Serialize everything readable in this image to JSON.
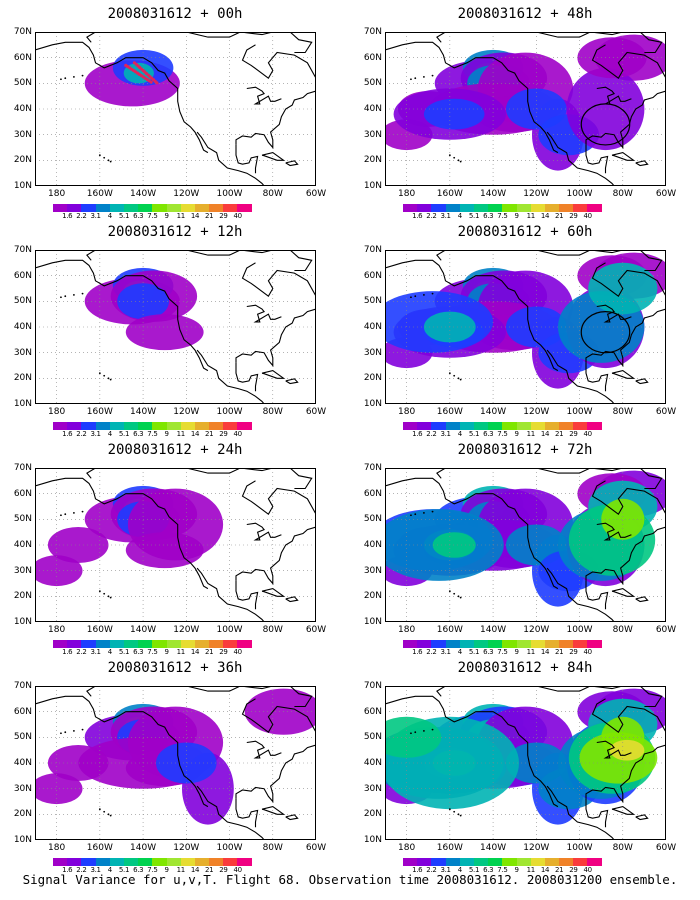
{
  "caption": "Signal Variance for u,v,T. Flight 68. Observation time 2008031612. 2008031200 ensemble.",
  "map": {
    "lat_labels": [
      "70N",
      "60N",
      "50N",
      "40N",
      "30N",
      "20N",
      "10N"
    ],
    "lon_labels": [
      "180",
      "160W",
      "140W",
      "120W",
      "100W",
      "80W",
      "60W"
    ],
    "lat_range": [
      10,
      70
    ],
    "lon_range": [
      -190,
      -60
    ],
    "grid_style": "dotted",
    "coastline_color": "#000000"
  },
  "colorbar": {
    "labels": [
      "1.6",
      "2.2",
      "3.1",
      "4",
      "5.1",
      "6.3",
      "7.5",
      "9",
      "11",
      "14",
      "21",
      "29",
      "40"
    ],
    "colors": [
      "#a000c8",
      "#8200dc",
      "#1e3cff",
      "#0082c8",
      "#00b4b4",
      "#00c882",
      "#00d250",
      "#7fe600",
      "#a0e632",
      "#e6dc32",
      "#e6af2d",
      "#f08228",
      "#fa3c3c",
      "#f00082"
    ]
  },
  "panels": [
    {
      "title": "2008031612 + 00h",
      "intensity": 0,
      "observations": true
    },
    {
      "title": "2008031612 + 12h",
      "intensity": 1
    },
    {
      "title": "2008031612 + 24h",
      "intensity": 2
    },
    {
      "title": "2008031612 + 36h",
      "intensity": 3
    },
    {
      "title": "2008031612 + 48h",
      "intensity": 4,
      "circle": [
        -88,
        34,
        8
      ]
    },
    {
      "title": "2008031612 + 60h",
      "intensity": 5,
      "circle": [
        -88,
        38,
        8
      ]
    },
    {
      "title": "2008031612 + 72h",
      "intensity": 6
    },
    {
      "title": "2008031612 + 84h",
      "intensity": 7
    }
  ]
}
